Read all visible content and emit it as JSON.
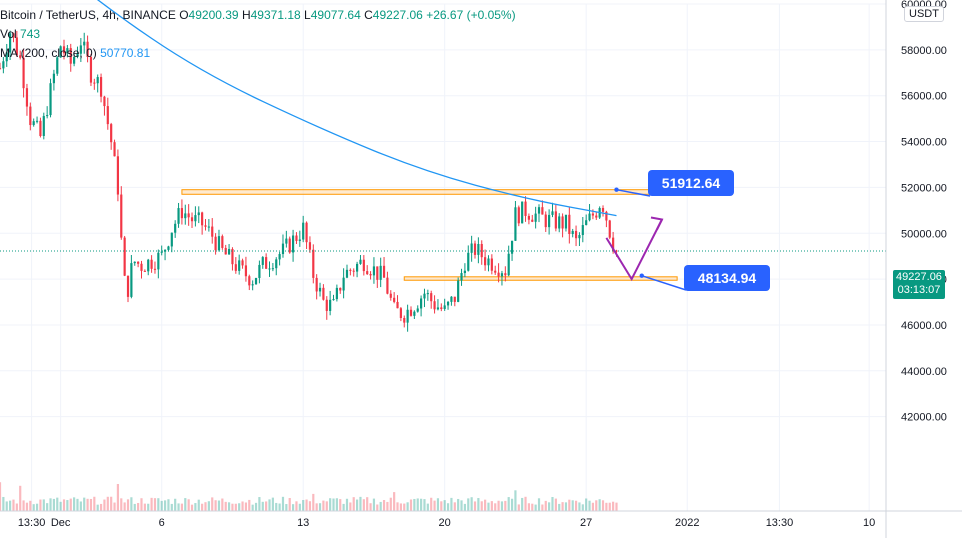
{
  "legend": {
    "symbol": "Bitcoin / TetherUS, 4h, BINANCE",
    "open_label": "O",
    "open": "49200.39",
    "high_label": "H",
    "high": "49371.18",
    "low_label": "L",
    "low": "49077.64",
    "close_label": "C",
    "close": "49227.06",
    "change": "+26.67 (+0.05%)",
    "vol_label": "Vol",
    "vol_value": "743",
    "ma_label": "MA (200, close, 0)",
    "ma_value": "50770.81"
  },
  "currency_button": "USDT",
  "last_price": {
    "value": "49227.06",
    "countdown": "03:13:07"
  },
  "annotations": {
    "resistance_label": "51912.64",
    "support_label": "48134.94"
  },
  "colors": {
    "up": "#089981",
    "down": "#f23645",
    "ma": "#2196f3",
    "zone_fill": "#ffd8a8",
    "zone_border": "#ff9800",
    "projection": "#9c27b0",
    "callout": "#2962ff"
  },
  "chart_data": {
    "type": "candlestick",
    "title": "Bitcoin / TetherUS, 4h, BINANCE",
    "ylim": [
      40000,
      60000
    ],
    "y_ticks": [
      "60000.00",
      "58000.00",
      "56000.00",
      "54000.00",
      "52000.00",
      "50000.00",
      "48000.00",
      "46000.00",
      "44000.00",
      "42000.00"
    ],
    "x_tick_labels": [
      "13:30",
      "Dec",
      "6",
      "13",
      "20",
      "27",
      "2022",
      "13:30",
      "10"
    ],
    "x_ticks": [
      "Nov 29 13:30",
      "Dec 1",
      "Dec 6",
      "Dec 13",
      "Dec 20",
      "Dec 27",
      "Jan 1",
      "Jan 5 13:30",
      "Jan 10"
    ],
    "x_range": [
      "Nov 28 00:00",
      "Jan 10 20:00"
    ],
    "candle_interval_hours": 4,
    "last_candle": "Dec 28 12:00",
    "price_path": [
      [
        "Nov 28 00:00",
        57200
      ],
      [
        "Nov 28 12:00",
        58800
      ],
      [
        "Nov 29 00:00",
        57600
      ],
      [
        "Nov 29 12:00",
        55000
      ],
      [
        "Nov 30 00:00",
        54200
      ],
      [
        "Nov 30 12:00",
        56200
      ],
      [
        "Dec 1 00:00",
        58200
      ],
      [
        "Dec 1 12:00",
        57400
      ],
      [
        "Dec 2 00:00",
        58400
      ],
      [
        "Dec 2 12:00",
        57000
      ],
      [
        "Dec 3 00:00",
        56400
      ],
      [
        "Dec 3 12:00",
        54000
      ],
      [
        "Dec 3 20:00",
        52000
      ],
      [
        "Dec 4 02:00",
        48500
      ],
      [
        "Dec 4 06:00",
        47200
      ],
      [
        "Dec 4 14:00",
        48800
      ],
      [
        "Dec 5 00:00",
        48600
      ],
      [
        "Dec 6 00:00",
        49000
      ],
      [
        "Dec 6 12:00",
        50200
      ],
      [
        "Dec 7 00:00",
        51000
      ],
      [
        "Dec 7 12:00",
        50600
      ],
      [
        "Dec 8 00:00",
        50400
      ],
      [
        "Dec 8 12:00",
        49900
      ],
      [
        "Dec 9 00:00",
        49200
      ],
      [
        "Dec 10 00:00",
        48300
      ],
      [
        "Dec 10 12:00",
        48000
      ],
      [
        "Dec 11 00:00",
        48600
      ],
      [
        "Dec 12 00:00",
        49200
      ],
      [
        "Dec 13 00:00",
        50200
      ],
      [
        "Dec 13 12:00",
        48200
      ],
      [
        "Dec 14 00:00",
        47000
      ],
      [
        "Dec 14 12:00",
        46800
      ],
      [
        "Dec 15 00:00",
        48200
      ],
      [
        "Dec 16 00:00",
        48800
      ],
      [
        "Dec 17 00:00",
        48000
      ],
      [
        "Dec 17 12:00",
        46600
      ],
      [
        "Dec 18 00:00",
        46500
      ],
      [
        "Dec 18 12:00",
        46900
      ],
      [
        "Dec 19 00:00",
        47400
      ],
      [
        "Dec 19 12:00",
        46900
      ],
      [
        "Dec 20 00:00",
        46600
      ],
      [
        "Dec 20 12:00",
        47200
      ],
      [
        "Dec 21 00:00",
        48800
      ],
      [
        "Dec 21 12:00",
        49300
      ],
      [
        "Dec 22 00:00",
        48900
      ],
      [
        "Dec 23 00:00",
        48400
      ],
      [
        "Dec 23 12:00",
        50800
      ],
      [
        "Dec 24 00:00",
        51000
      ],
      [
        "Dec 25 00:00",
        50600
      ],
      [
        "Dec 26 00:00",
        50400
      ],
      [
        "Dec 26 12:00",
        49600
      ],
      [
        "Dec 27 00:00",
        50400
      ],
      [
        "Dec 27 12:00",
        51000
      ],
      [
        "Dec 27 18:00",
        51500
      ],
      [
        "Dec 28 00:00",
        50700
      ],
      [
        "Dec 28 06:00",
        49800
      ],
      [
        "Dec 28 12:00",
        49227
      ]
    ],
    "moving_average": {
      "name": "MA (200, close, 0)",
      "points": [
        [
          "Nov 29 12:00",
          62600
        ],
        [
          "Dec 3 00:00",
          60000
        ],
        [
          "Dec 8 00:00",
          57000
        ],
        [
          "Dec 14 00:00",
          54500
        ],
        [
          "Dec 19 00:00",
          52700
        ],
        [
          "Dec 24 00:00",
          51500
        ],
        [
          "Dec 28 12:00",
          50770
        ]
      ]
    },
    "volume": {
      "label": "Vol",
      "spikes": [
        [
          "Dec 4 06:00",
          5.0
        ],
        [
          "Nov 28 00:00",
          3.2
        ],
        [
          "Nov 29 00:00",
          2.8
        ],
        [
          "Dec 3 20:00",
          3.0
        ],
        [
          "Dec 4 14:00",
          3.4
        ],
        [
          "Dec 13 12:00",
          1.9
        ],
        [
          "Dec 17 12:00",
          2.1
        ],
        [
          "Dec 23 12:00",
          2.3
        ],
        [
          "Dec 28 06:00",
          1.7
        ]
      ]
    },
    "zones": [
      {
        "name": "resistance",
        "from": "Dec 7 00:00",
        "to": "Dec 31 12:00",
        "low": 51700,
        "high": 51900
      },
      {
        "name": "support",
        "from": "Dec 18 00:00",
        "to": "Dec 31 12:00",
        "low": 47950,
        "high": 48100
      }
    ],
    "projection_path": [
      [
        "Dec 28 00:00",
        49800
      ],
      [
        "Dec 29 06:00",
        48000
      ],
      [
        "Dec 30 18:00",
        50600
      ]
    ],
    "projection_arrow_tip": [
      "Dec 30 18:00",
      50600
    ],
    "callout_pointers": [
      {
        "label": "51912.64",
        "to": [
          "Dec 28 12:00",
          51900
        ]
      },
      {
        "label": "48134.94",
        "to": [
          "Dec 29 18:00",
          48150
        ]
      }
    ],
    "last_price": 49227.06
  }
}
